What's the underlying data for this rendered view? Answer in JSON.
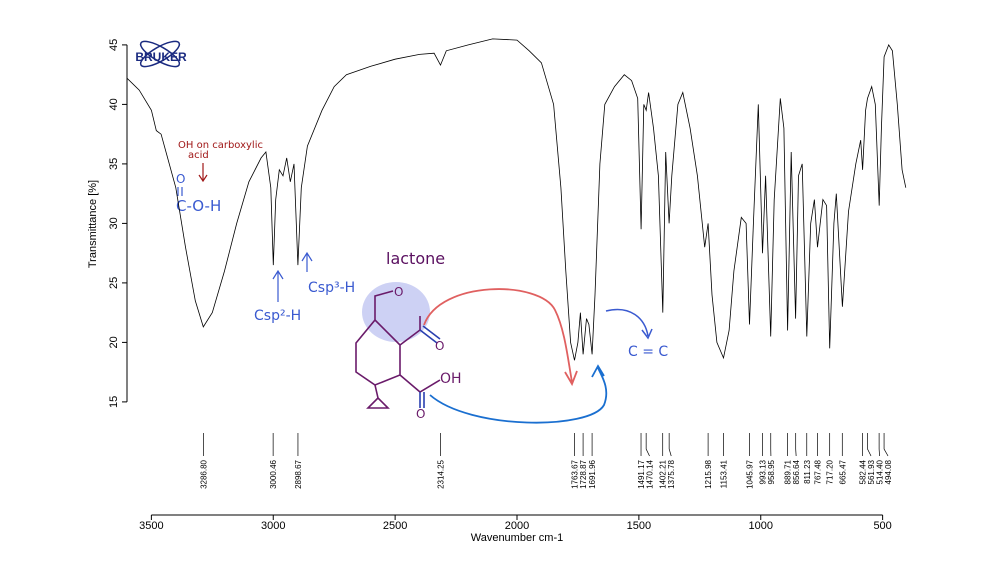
{
  "chart_data": {
    "type": "line",
    "xlabel": "Wavenumber cm-1",
    "ylabel": "Transmittance [%]",
    "xlim": [
      3600,
      400
    ],
    "ylim": [
      6,
      46
    ],
    "xticks": [
      3500,
      3000,
      2500,
      2000,
      1500,
      1000,
      500
    ],
    "yticks": [
      15,
      20,
      25,
      30,
      35,
      40,
      45
    ],
    "color": "#000000",
    "x": [
      3600,
      3550,
      3500,
      3480,
      3460,
      3440,
      3400,
      3360,
      3320,
      3287,
      3250,
      3200,
      3150,
      3100,
      3050,
      3030,
      3010,
      3000,
      2990,
      2975,
      2960,
      2945,
      2930,
      2915,
      2899,
      2885,
      2860,
      2800,
      2750,
      2700,
      2600,
      2500,
      2400,
      2340,
      2314,
      2290,
      2200,
      2100,
      2000,
      1950,
      1900,
      1850,
      1820,
      1800,
      1780,
      1764,
      1750,
      1740,
      1729,
      1715,
      1705,
      1692,
      1680,
      1660,
      1640,
      1600,
      1560,
      1530,
      1505,
      1491,
      1480,
      1470,
      1460,
      1440,
      1420,
      1402,
      1390,
      1376,
      1365,
      1340,
      1320,
      1290,
      1260,
      1230,
      1216,
      1200,
      1180,
      1153,
      1130,
      1110,
      1080,
      1060,
      1046,
      1030,
      1010,
      993,
      980,
      959,
      945,
      920,
      905,
      890,
      875,
      857,
      845,
      830,
      811,
      795,
      780,
      767,
      745,
      730,
      717,
      700,
      690,
      665,
      640,
      610,
      590,
      582,
      570,
      562,
      545,
      530,
      514,
      505,
      494,
      475,
      460,
      440,
      420,
      405
    ],
    "values": [
      42.2,
      41.2,
      39.5,
      37.8,
      37.5,
      36,
      33,
      28,
      23.5,
      21.3,
      22.5,
      26,
      30,
      33.5,
      35.5,
      36,
      33,
      26.5,
      32,
      34.5,
      34,
      35.5,
      33.5,
      35,
      26.5,
      33,
      36.5,
      39.5,
      41.5,
      42.5,
      43.2,
      43.8,
      44.2,
      44.3,
      43.3,
      44.5,
      45,
      45.5,
      45.4,
      44.5,
      43.5,
      40,
      33,
      26,
      20,
      18.5,
      20,
      22.5,
      19,
      22,
      21.5,
      19,
      24,
      35,
      40,
      41.5,
      42.5,
      42,
      40.5,
      29.5,
      40,
      39.5,
      41,
      38,
      34,
      22.5,
      36,
      30,
      34,
      40,
      41,
      38,
      34,
      28,
      30,
      24,
      20,
      18.7,
      21,
      26,
      30.5,
      30,
      21.5,
      30,
      40,
      27.5,
      34,
      20.5,
      32,
      40.5,
      38,
      21,
      36,
      22,
      34,
      35,
      20.5,
      30,
      32,
      28,
      32,
      31.5,
      19.5,
      30,
      32.5,
      23,
      31,
      35,
      37,
      34.5,
      39.5,
      40.5,
      41.5,
      40,
      31.5,
      38,
      44,
      45,
      44.5,
      40,
      34.5,
      33
    ],
    "peaks": [
      {
        "value": 3286.8,
        "label": "3286.80"
      },
      {
        "value": 3000.46,
        "label": "3000.46"
      },
      {
        "value": 2898.67,
        "label": "2898.67"
      },
      {
        "value": 2314.25,
        "label": "2314.25"
      },
      {
        "value": 1763.67,
        "label": "1763.67"
      },
      {
        "value": 1728.87,
        "label": "1728.87"
      },
      {
        "value": 1691.96,
        "label": "1691.96"
      },
      {
        "value": 1491.17,
        "label": "1491.17"
      },
      {
        "value": 1470.14,
        "label": "1470.14"
      },
      {
        "value": 1402.21,
        "label": "1402.21"
      },
      {
        "value": 1375.78,
        "label": "1375.78"
      },
      {
        "value": 1215.98,
        "label": "1215.98"
      },
      {
        "value": 1153.41,
        "label": "1153.41"
      },
      {
        "value": 1045.97,
        "label": "1045.97"
      },
      {
        "value": 993.13,
        "label": "993.13"
      },
      {
        "value": 958.95,
        "label": "958.95"
      },
      {
        "value": 889.71,
        "label": "889.71"
      },
      {
        "value": 856.64,
        "label": "856.64"
      },
      {
        "value": 811.23,
        "label": "811.23"
      },
      {
        "value": 767.48,
        "label": "767.48"
      },
      {
        "value": 717.2,
        "label": "717.20"
      },
      {
        "value": 665.47,
        "label": "665.47"
      },
      {
        "value": 582.44,
        "label": "582.44"
      },
      {
        "value": 561.93,
        "label": "561.93"
      },
      {
        "value": 514.4,
        "label": "514.40"
      },
      {
        "value": 494.08,
        "label": "494.08"
      }
    ]
  },
  "logo": "BRUKER",
  "annotations": {
    "oh_note_line1": "OH on carboxylic",
    "oh_note_line2": "acid",
    "cooh_o": "O",
    "cooh": "C-O-H",
    "csp2": "Csp²-H",
    "csp3": "Csp³-H",
    "lactone": "lactone",
    "ring_o": "O",
    "lactone_o": "O",
    "acid_oh": "OH",
    "acid_o": "O",
    "alkene": "C = C"
  }
}
